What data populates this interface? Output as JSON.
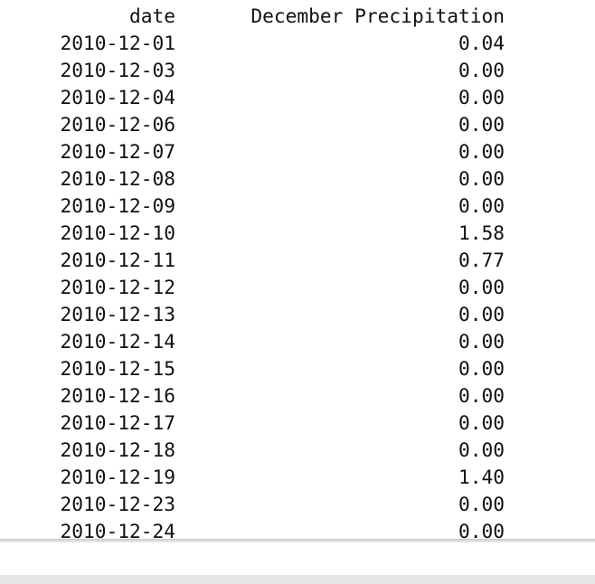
{
  "table": {
    "header": {
      "index_name": "date",
      "column_name": "December Precipitation"
    },
    "rows": [
      {
        "date": "2010-12-01",
        "value": "0.04"
      },
      {
        "date": "2010-12-03",
        "value": "0.00"
      },
      {
        "date": "2010-12-04",
        "value": "0.00"
      },
      {
        "date": "2010-12-06",
        "value": "0.00"
      },
      {
        "date": "2010-12-07",
        "value": "0.00"
      },
      {
        "date": "2010-12-08",
        "value": "0.00"
      },
      {
        "date": "2010-12-09",
        "value": "0.00"
      },
      {
        "date": "2010-12-10",
        "value": "1.58"
      },
      {
        "date": "2010-12-11",
        "value": "0.77"
      },
      {
        "date": "2010-12-12",
        "value": "0.00"
      },
      {
        "date": "2010-12-13",
        "value": "0.00"
      },
      {
        "date": "2010-12-14",
        "value": "0.00"
      },
      {
        "date": "2010-12-15",
        "value": "0.00"
      },
      {
        "date": "2010-12-16",
        "value": "0.00"
      },
      {
        "date": "2010-12-17",
        "value": "0.00"
      },
      {
        "date": "2010-12-18",
        "value": "0.00"
      },
      {
        "date": "2010-12-19",
        "value": "1.40"
      },
      {
        "date": "2010-12-23",
        "value": "0.00"
      },
      {
        "date": "2010-12-24",
        "value": "0.00"
      }
    ]
  }
}
